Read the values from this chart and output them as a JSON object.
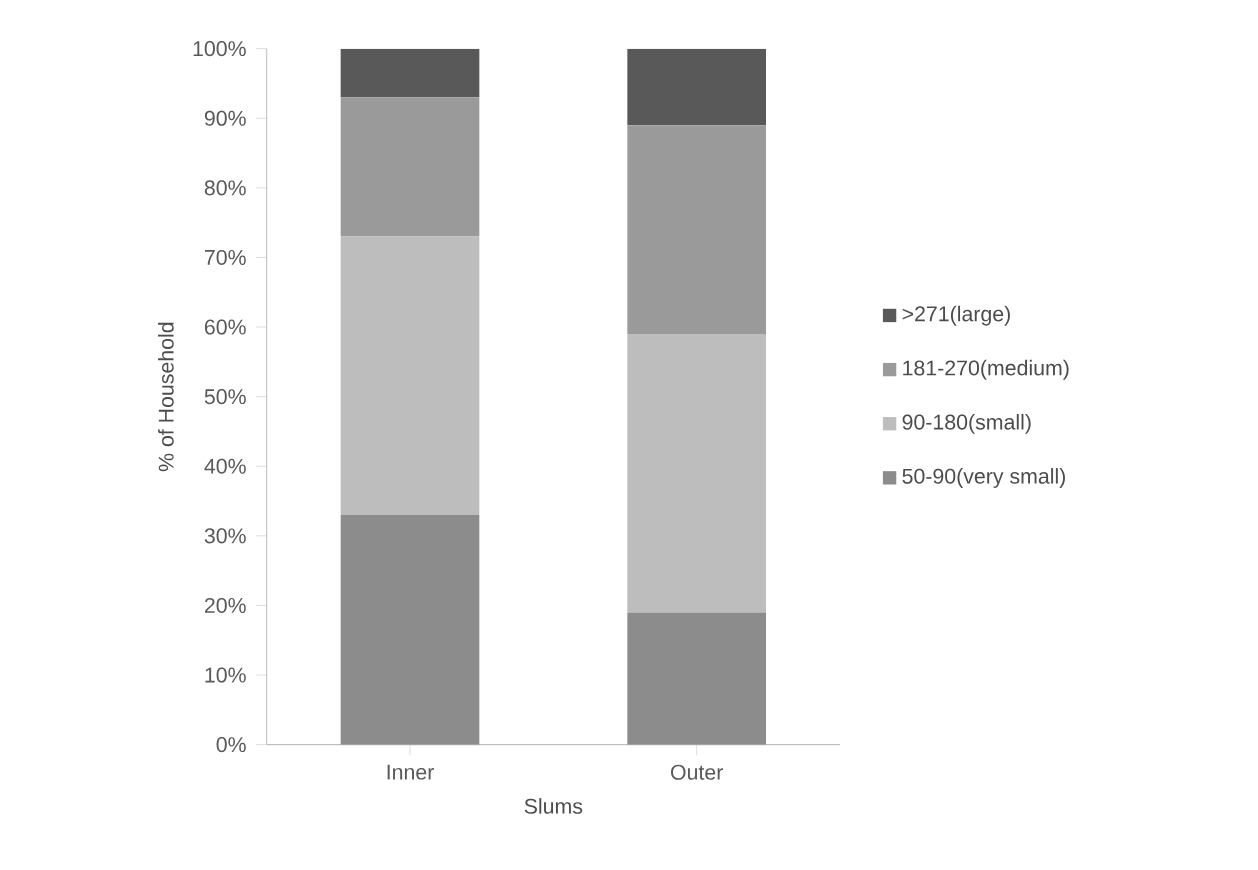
{
  "chart_data": {
    "type": "bar",
    "stacked": true,
    "xlabel": "Slums",
    "ylabel": "% of Household",
    "categories": [
      "Inner",
      "Outer"
    ],
    "series": [
      {
        "name": "50-90(very small)",
        "color": "#8c8c8c",
        "values": [
          33,
          19
        ]
      },
      {
        "name": "90-180(small)",
        "color": "#bdbdbd",
        "values": [
          40,
          40
        ]
      },
      {
        "name": "181-270(medium)",
        "color": "#9a9a9a",
        "values": [
          20,
          30
        ]
      },
      {
        "name": ">271(large)",
        "color": "#595959",
        "values": [
          7,
          11
        ]
      }
    ],
    "ylim": [
      0,
      100
    ],
    "yticks": [
      {
        "value": 0,
        "label": "0%"
      },
      {
        "value": 10,
        "label": "10%"
      },
      {
        "value": 20,
        "label": "20%"
      },
      {
        "value": 30,
        "label": "30%"
      },
      {
        "value": 40,
        "label": "40%"
      },
      {
        "value": 50,
        "label": "50%"
      },
      {
        "value": 60,
        "label": "60%"
      },
      {
        "value": 70,
        "label": "70%"
      },
      {
        "value": 80,
        "label": "80%"
      },
      {
        "value": 90,
        "label": "90%"
      },
      {
        "value": 100,
        "label": "100%"
      }
    ],
    "grid": false,
    "legend": "right"
  }
}
